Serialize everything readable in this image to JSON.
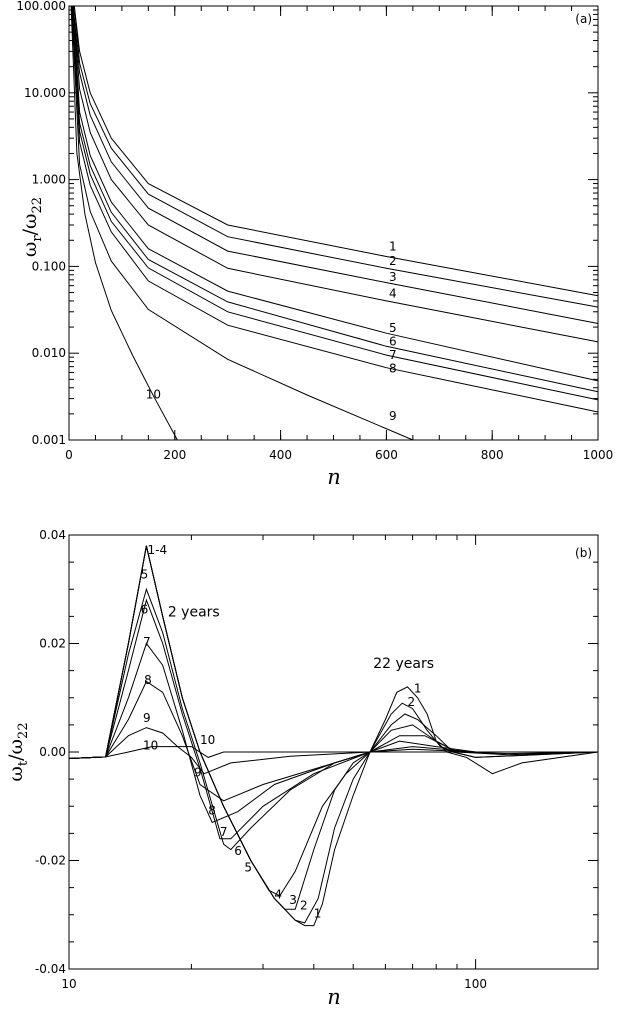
{
  "chart_data": [
    {
      "type": "line",
      "panel_label": "(a)",
      "xlabel": "n",
      "ylabel": "ωr/ω22",
      "ylabel_parts": {
        "main": "ω",
        "sub": "r",
        "slash": "/",
        "main2": "ω",
        "sub2": "22"
      },
      "xlim": [
        0,
        1000
      ],
      "ylim": [
        0.001,
        100
      ],
      "yscale": "log",
      "xticks": [
        0,
        200,
        400,
        600,
        800,
        1000
      ],
      "xtick_labels": [
        "0",
        "200",
        "400",
        "600",
        "800",
        "1000"
      ],
      "yticks": [
        0.001,
        0.01,
        0.1,
        1,
        10,
        100
      ],
      "ytick_labels": [
        "0.001",
        "0.010",
        "0.100",
        "1.000",
        "10.000",
        "100.000"
      ],
      "series": [
        {
          "name": "1",
          "x": [
            10,
            20,
            40,
            80,
            150,
            300,
            600,
            1000
          ],
          "y": [
            100,
            30,
            10,
            3.0,
            0.9,
            0.3,
            0.13,
            0.046
          ]
        },
        {
          "name": "2",
          "x": [
            10,
            20,
            40,
            80,
            150,
            300,
            600,
            1000
          ],
          "y": [
            100,
            22,
            7.5,
            2.3,
            0.68,
            0.22,
            0.095,
            0.034
          ]
        },
        {
          "name": "3",
          "x": [
            8,
            20,
            40,
            80,
            150,
            300,
            600,
            1000
          ],
          "y": [
            100,
            17,
            5.5,
            1.6,
            0.47,
            0.15,
            0.065,
            0.022
          ]
        },
        {
          "name": "4",
          "x": [
            8,
            20,
            40,
            80,
            150,
            300,
            600,
            1000
          ],
          "y": [
            100,
            11,
            3.5,
            1.0,
            0.3,
            0.095,
            0.04,
            0.0135
          ]
        },
        {
          "name": "5",
          "x": [
            8,
            20,
            40,
            80,
            150,
            300,
            600,
            1000
          ],
          "y": [
            100,
            6.0,
            1.9,
            0.55,
            0.16,
            0.052,
            0.017,
            0.0048
          ]
        },
        {
          "name": "6",
          "x": [
            6,
            20,
            40,
            80,
            150,
            300,
            600,
            1000
          ],
          "y": [
            100,
            4.5,
            1.45,
            0.42,
            0.12,
            0.039,
            0.012,
            0.0036
          ]
        },
        {
          "name": "7",
          "x": [
            6,
            20,
            40,
            80,
            150,
            300,
            600,
            1000
          ],
          "y": [
            100,
            3.6,
            1.15,
            0.33,
            0.096,
            0.03,
            0.0095,
            0.0029
          ]
        },
        {
          "name": "8",
          "x": [
            6,
            20,
            40,
            80,
            150,
            300,
            600,
            1000
          ],
          "y": [
            100,
            2.7,
            0.86,
            0.25,
            0.068,
            0.021,
            0.0068,
            0.0021
          ]
        },
        {
          "name": "9",
          "x": [
            5,
            20,
            40,
            80,
            150,
            300,
            450,
            650
          ],
          "y": [
            100,
            1.5,
            0.43,
            0.115,
            0.032,
            0.0085,
            0.0033,
            0.001
          ]
        },
        {
          "name": "10",
          "x": [
            4,
            15,
            30,
            50,
            80,
            120,
            160,
            205
          ],
          "y": [
            100,
            2.0,
            0.4,
            0.11,
            0.031,
            0.0095,
            0.0032,
            0.001
          ]
        }
      ],
      "curve_labels": [
        {
          "text": "1",
          "x": 605,
          "y": 0.152
        },
        {
          "text": "2",
          "x": 605,
          "y": 0.104
        },
        {
          "text": "3",
          "x": 605,
          "y": 0.068
        },
        {
          "text": "4",
          "x": 605,
          "y": 0.044
        },
        {
          "text": "5",
          "x": 605,
          "y": 0.0175
        },
        {
          "text": "6",
          "x": 605,
          "y": 0.0122
        },
        {
          "text": "7",
          "x": 605,
          "y": 0.0086
        },
        {
          "text": "8",
          "x": 605,
          "y": 0.006
        },
        {
          "text": "9",
          "x": 605,
          "y": 0.0017
        },
        {
          "text": "10",
          "x": 145,
          "y": 0.003
        }
      ]
    },
    {
      "type": "line",
      "panel_label": "(b)",
      "xlabel": "n",
      "ylabel": "ωt/ω22",
      "ylabel_parts": {
        "main": "ω",
        "sub": "t",
        "slash": "/",
        "main2": "ω",
        "sub2": "22"
      },
      "xlim": [
        10,
        200
      ],
      "ylim": [
        -0.04,
        0.04
      ],
      "xscale": "log",
      "xticks": [
        10,
        100
      ],
      "xtick_labels": [
        "10",
        "100"
      ],
      "yticks": [
        -0.04,
        -0.02,
        0.0,
        0.02,
        0.04
      ],
      "ytick_labels": [
        "-0.04",
        "-0.02",
        "0.00",
        "0.02",
        "0.04"
      ],
      "annotations": [
        "2 years",
        "22 years",
        "1-4"
      ],
      "series": [
        {
          "name": "1",
          "x": [
            10,
            12.3,
            14,
            15.5,
            17,
            19,
            21,
            24,
            28,
            32,
            36,
            38,
            40,
            42,
            45,
            50,
            55,
            60,
            64,
            68,
            72,
            76,
            80,
            85,
            95,
            110,
            130,
            200
          ],
          "y": [
            -0.0012,
            -0.0009,
            0.02,
            0.038,
            0.025,
            0.01,
            0.0,
            -0.01,
            -0.02,
            -0.027,
            -0.031,
            -0.032,
            -0.032,
            -0.028,
            -0.018,
            -0.008,
            0.0,
            0.006,
            0.011,
            0.012,
            0.01,
            0.007,
            0.002,
            0.0,
            -0.001,
            -0.004,
            -0.002,
            0.0
          ]
        },
        {
          "name": "2",
          "x": [
            10,
            12.3,
            14,
            15.5,
            17,
            19,
            21,
            24,
            28,
            32,
            36,
            38,
            41,
            45,
            50,
            55,
            62,
            66,
            70,
            76,
            82,
            88,
            100,
            200
          ],
          "y": [
            -0.0012,
            -0.0009,
            0.02,
            0.038,
            0.025,
            0.01,
            0.0,
            -0.01,
            -0.02,
            -0.027,
            -0.031,
            -0.0315,
            -0.027,
            -0.014,
            -0.005,
            0.0,
            0.007,
            0.009,
            0.008,
            0.004,
            0.001,
            0.0,
            -0.001,
            0.0
          ]
        },
        {
          "name": "3",
          "x": [
            10,
            12.3,
            14,
            15.5,
            17,
            19,
            21,
            24,
            28,
            32,
            34,
            36,
            40,
            45,
            50,
            55,
            62,
            67,
            72,
            80,
            88,
            100,
            200
          ],
          "y": [
            -0.0012,
            -0.0009,
            0.02,
            0.038,
            0.025,
            0.01,
            0.0,
            -0.01,
            -0.02,
            -0.027,
            -0.029,
            -0.029,
            -0.018,
            -0.007,
            -0.002,
            0.0,
            0.005,
            0.007,
            0.006,
            0.003,
            0.0,
            -0.001,
            0.0
          ]
        },
        {
          "name": "4",
          "x": [
            10,
            12.3,
            14,
            15.5,
            17,
            19,
            21,
            24,
            28,
            31,
            33,
            36,
            42,
            48,
            55,
            62,
            70,
            80,
            90,
            120,
            200
          ],
          "y": [
            -0.0012,
            -0.0009,
            0.02,
            0.038,
            0.025,
            0.01,
            0.0,
            -0.01,
            -0.02,
            -0.0255,
            -0.0265,
            -0.022,
            -0.01,
            -0.004,
            0.0,
            0.004,
            0.005,
            0.002,
            0.0,
            -0.0005,
            0.0
          ]
        },
        {
          "name": "5",
          "x": [
            10,
            12.3,
            14,
            15.5,
            17,
            19,
            21,
            24,
            25,
            28,
            35,
            45,
            55,
            65,
            75,
            90,
            120,
            200
          ],
          "y": [
            -0.0012,
            -0.0009,
            0.018,
            0.03,
            0.022,
            0.008,
            -0.002,
            -0.017,
            -0.018,
            -0.014,
            -0.007,
            -0.002,
            0.0,
            0.003,
            0.003,
            0.0,
            -0.0003,
            0.0
          ]
        },
        {
          "name": "6",
          "x": [
            10,
            12.3,
            14,
            15.5,
            17,
            19,
            21,
            23.5,
            25,
            30,
            40,
            55,
            65,
            80,
            100,
            200
          ],
          "y": [
            -0.0012,
            -0.0009,
            0.015,
            0.028,
            0.02,
            0.007,
            -0.003,
            -0.016,
            -0.016,
            -0.01,
            -0.004,
            0.0,
            0.002,
            0.001,
            0.0,
            0.0
          ]
        },
        {
          "name": "7",
          "x": [
            10,
            12.3,
            14,
            15.5,
            17,
            19,
            21,
            22.5,
            26,
            32,
            45,
            55,
            70,
            100,
            200
          ],
          "y": [
            -0.0012,
            -0.0009,
            0.01,
            0.02,
            0.016,
            0.004,
            -0.008,
            -0.013,
            -0.011,
            -0.006,
            -0.002,
            0.0,
            0.001,
            0.0,
            0.0
          ]
        },
        {
          "name": "8",
          "x": [
            10,
            12.3,
            14,
            15.5,
            17,
            19,
            21,
            24,
            30,
            45,
            55,
            70,
            100,
            200
          ],
          "y": [
            -0.0012,
            -0.0009,
            0.006,
            0.013,
            0.011,
            0.003,
            -0.006,
            -0.009,
            -0.006,
            -0.002,
            0.0,
            0.0005,
            0.0,
            0.0
          ]
        },
        {
          "name": "9",
          "x": [
            10,
            12.3,
            14,
            15.5,
            17,
            18.5,
            20,
            21.5,
            25,
            35,
            55,
            100,
            200
          ],
          "y": [
            -0.0012,
            -0.0009,
            0.003,
            0.0045,
            0.0035,
            0.001,
            -0.001,
            -0.004,
            -0.002,
            -0.0008,
            0.0,
            0.0,
            0.0
          ]
        },
        {
          "name": "10",
          "x": [
            10,
            12.3,
            14,
            16,
            18,
            20,
            22,
            24,
            30,
            55,
            100,
            200
          ],
          "y": [
            -0.0012,
            -0.0009,
            0.0,
            0.001,
            0.001,
            0.001,
            -0.001,
            0.0,
            0.0,
            0.0,
            0.0,
            0.0
          ]
        }
      ],
      "curve_labels": [
        {
          "text": "1-4",
          "x": 15.6,
          "y": 0.0365
        },
        {
          "text": "5",
          "x": 15.0,
          "y": 0.032
        },
        {
          "text": "6",
          "x": 15.0,
          "y": 0.0255
        },
        {
          "text": "7",
          "x": 15.2,
          "y": 0.0195
        },
        {
          "text": "8",
          "x": 15.3,
          "y": 0.0125
        },
        {
          "text": "9",
          "x": 15.2,
          "y": 0.0055
        },
        {
          "text": "10",
          "x": 15.2,
          "y": 0.0005
        },
        {
          "text": "10",
          "x": 21.0,
          "y": 0.0015
        },
        {
          "text": "9",
          "x": 20.3,
          "y": -0.0045
        },
        {
          "text": "8",
          "x": 22.0,
          "y": -0.0115
        },
        {
          "text": "7",
          "x": 23.5,
          "y": -0.0155
        },
        {
          "text": "6",
          "x": 25.5,
          "y": -0.019
        },
        {
          "text": "5",
          "x": 27.0,
          "y": -0.022
        },
        {
          "text": "4",
          "x": 32.0,
          "y": -0.027
        },
        {
          "text": "3",
          "x": 34.8,
          "y": -0.028
        },
        {
          "text": "2",
          "x": 37.0,
          "y": -0.029
        },
        {
          "text": "1",
          "x": 40.0,
          "y": -0.0305
        },
        {
          "text": "1",
          "x": 70.5,
          "y": 0.011
        },
        {
          "text": "2",
          "x": 68.0,
          "y": 0.0085
        }
      ],
      "text_notes": [
        {
          "text": "2 years",
          "x": 17.5,
          "y": 0.025
        },
        {
          "text": "22 years",
          "x": 56.0,
          "y": 0.0155
        }
      ]
    }
  ]
}
